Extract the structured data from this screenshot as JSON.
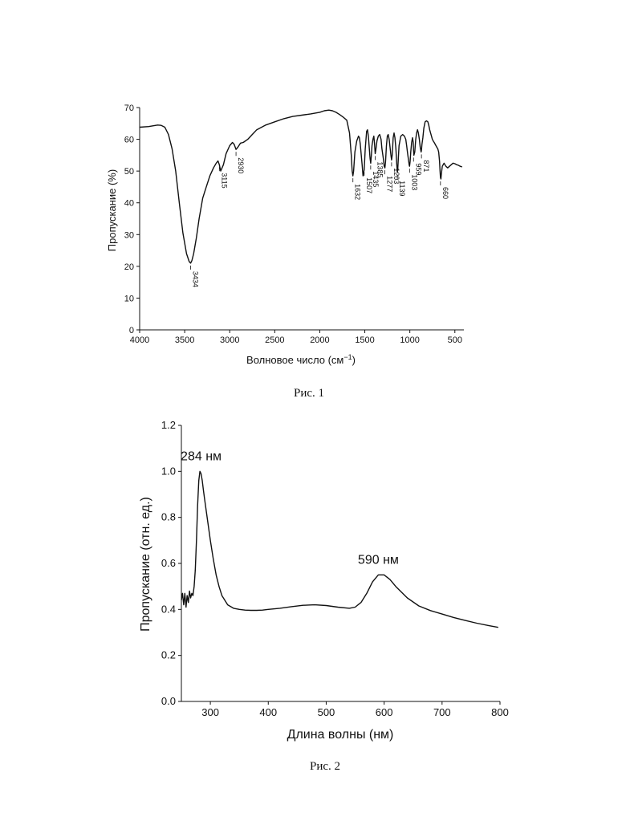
{
  "chart_data": [
    {
      "type": "line",
      "caption": "Рис. 1",
      "xlabel": "Волновое число (см",
      "xlabel_sup": "−1",
      "xlabel_end": ")",
      "ylabel": "Пропускание (%)",
      "xlim": [
        4000,
        400
      ],
      "ylim": [
        0,
        70
      ],
      "xticks": [
        4000,
        3500,
        3000,
        2500,
        2000,
        1500,
        1000,
        500
      ],
      "yticks": [
        0,
        10,
        20,
        30,
        40,
        50,
        60,
        70
      ],
      "series": [
        {
          "x": [
            4000,
            3900,
            3800,
            3760,
            3720,
            3680,
            3640,
            3600,
            3560,
            3520,
            3480,
            3450,
            3434,
            3420,
            3400,
            3370,
            3340,
            3300,
            3260,
            3220,
            3180,
            3150,
            3130,
            3115,
            3100,
            3070,
            3040,
            3000,
            2970,
            2950,
            2930,
            2910,
            2880,
            2850,
            2800,
            2750,
            2700,
            2600,
            2500,
            2400,
            2300,
            2200,
            2100,
            2000,
            1950,
            1900,
            1860,
            1820,
            1780,
            1740,
            1700,
            1670,
            1650,
            1640,
            1632,
            1624,
            1610,
            1590,
            1570,
            1560,
            1550,
            1530,
            1520,
            1507,
            1495,
            1480,
            1470,
            1460,
            1450,
            1442,
            1435,
            1428,
            1420,
            1410,
            1400,
            1392,
            1385,
            1378,
            1365,
            1350,
            1335,
            1320,
            1310,
            1295,
            1285,
            1277,
            1270,
            1260,
            1250,
            1240,
            1230,
            1220,
            1210,
            1203,
            1196,
            1185,
            1175,
            1165,
            1155,
            1145,
            1139,
            1133,
            1120,
            1100,
            1080,
            1060,
            1045,
            1035,
            1025,
            1015,
            1008,
            1003,
            997,
            990,
            980,
            970,
            962,
            959,
            955,
            945,
            935,
            925,
            915,
            905,
            895,
            885,
            875,
            871,
            865,
            855,
            845,
            830,
            815,
            800,
            790,
            780,
            770,
            760,
            750,
            740,
            730,
            720,
            710,
            700,
            690,
            680,
            670,
            665,
            660,
            655,
            650,
            640,
            630,
            620,
            610,
            600,
            580,
            560,
            540,
            520,
            500,
            480,
            460,
            440,
            420
          ],
          "y": [
            63.8,
            64.0,
            64.5,
            64.4,
            63.8,
            61.5,
            57.0,
            50.0,
            40.0,
            30.5,
            24.0,
            21.5,
            21.0,
            21.8,
            24.0,
            29.0,
            35.0,
            41.5,
            45.0,
            48.5,
            51.0,
            52.5,
            53.2,
            52.0,
            50.0,
            52.0,
            55.5,
            58.0,
            59.0,
            58.4,
            56.8,
            57.5,
            58.8,
            59.0,
            60.0,
            61.5,
            63.0,
            64.5,
            65.5,
            66.5,
            67.2,
            67.6,
            68.0,
            68.5,
            69.0,
            69.2,
            69.0,
            68.5,
            67.8,
            67.0,
            66.0,
            62.0,
            55.0,
            50.0,
            48.5,
            50.0,
            56.0,
            59.5,
            61.0,
            60.5,
            58.5,
            52.0,
            48.5,
            50.5,
            57.0,
            62.5,
            63.0,
            61.0,
            57.0,
            54.0,
            52.5,
            54.5,
            58.0,
            60.0,
            61.0,
            58.5,
            55.5,
            56.5,
            59.5,
            61.0,
            61.5,
            60.0,
            57.0,
            54.0,
            51.5,
            51.0,
            53.0,
            58.0,
            61.0,
            61.5,
            60.0,
            57.5,
            55.0,
            53.5,
            55.0,
            60.5,
            62.0,
            60.5,
            57.0,
            52.0,
            49.5,
            51.0,
            58.0,
            61.0,
            61.5,
            61.0,
            60.0,
            58.0,
            55.5,
            53.5,
            52.0,
            51.5,
            53.0,
            56.0,
            59.0,
            60.5,
            59.0,
            56.5,
            55.0,
            56.0,
            60.0,
            62.0,
            63.0,
            62.0,
            60.0,
            57.5,
            56.0,
            56.5,
            58.5,
            60.5,
            63.5,
            65.5,
            65.8,
            65.5,
            64.5,
            63.0,
            62.0,
            61.0,
            60.0,
            59.5,
            59.0,
            58.5,
            58.0,
            57.5,
            57.0,
            56.0,
            53.0,
            50.0,
            48.0,
            47.5,
            49.0,
            51.5,
            52.0,
            52.5,
            52.0,
            51.5,
            51.0,
            51.5,
            52.0,
            52.5,
            52.3,
            52.0,
            51.8,
            51.5,
            51.3
          ]
        }
      ],
      "annotations": [
        {
          "label": "3434",
          "x": 3434,
          "y": 21.0
        },
        {
          "label": "3115",
          "x": 3115,
          "y": 52.0
        },
        {
          "label": "2930",
          "x": 2930,
          "y": 56.8
        },
        {
          "label": "1632",
          "x": 1632,
          "y": 48.5
        },
        {
          "label": "1507",
          "x": 1507,
          "y": 50.5
        },
        {
          "label": "1435",
          "x": 1435,
          "y": 52.5
        },
        {
          "label": "1385",
          "x": 1385,
          "y": 55.5
        },
        {
          "label": "1277",
          "x": 1277,
          "y": 51.0
        },
        {
          "label": "1203",
          "x": 1203,
          "y": 53.5
        },
        {
          "label": "1139",
          "x": 1139,
          "y": 49.5
        },
        {
          "label": "1003",
          "x": 1003,
          "y": 51.5
        },
        {
          "label": "959",
          "x": 959,
          "y": 55.0
        },
        {
          "label": "871",
          "x": 871,
          "y": 56.0
        },
        {
          "label": "660",
          "x": 660,
          "y": 47.5
        }
      ]
    },
    {
      "type": "line",
      "caption": "Рис. 2",
      "xlabel": "Длина волны (нм)",
      "ylabel": "Пропускание (отн. ед.)",
      "xlim": [
        250,
        800
      ],
      "ylim": [
        0.0,
        1.2
      ],
      "xticks": [
        300,
        400,
        500,
        600,
        700,
        800
      ],
      "yticks": [
        0.0,
        0.2,
        0.4,
        0.6,
        0.8,
        1.0,
        1.2
      ],
      "series": [
        {
          "x": [
            250,
            252,
            254,
            256,
            258,
            260,
            262,
            264,
            266,
            268,
            270,
            272,
            274,
            276,
            278,
            280,
            282,
            284,
            286,
            288,
            290,
            295,
            300,
            305,
            310,
            315,
            320,
            330,
            340,
            350,
            360,
            370,
            380,
            390,
            400,
            420,
            440,
            460,
            480,
            500,
            520,
            540,
            550,
            560,
            570,
            580,
            590,
            600,
            610,
            620,
            640,
            660,
            680,
            700,
            720,
            740,
            760,
            780,
            797
          ],
          "y": [
            0.44,
            0.47,
            0.42,
            0.47,
            0.41,
            0.46,
            0.43,
            0.48,
            0.45,
            0.47,
            0.46,
            0.5,
            0.57,
            0.7,
            0.85,
            0.96,
            1.0,
            0.99,
            0.96,
            0.92,
            0.88,
            0.79,
            0.7,
            0.62,
            0.55,
            0.5,
            0.46,
            0.42,
            0.405,
            0.4,
            0.397,
            0.396,
            0.396,
            0.397,
            0.4,
            0.405,
            0.412,
            0.418,
            0.42,
            0.417,
            0.41,
            0.405,
            0.41,
            0.43,
            0.47,
            0.52,
            0.55,
            0.55,
            0.53,
            0.5,
            0.45,
            0.415,
            0.395,
            0.38,
            0.365,
            0.352,
            0.34,
            0.33,
            0.322
          ]
        }
      ],
      "annotations": [
        {
          "label": "284 нм",
          "x": 284,
          "y": 1.0
        },
        {
          "label": "590 нм",
          "x": 590,
          "y": 0.55
        }
      ]
    }
  ]
}
